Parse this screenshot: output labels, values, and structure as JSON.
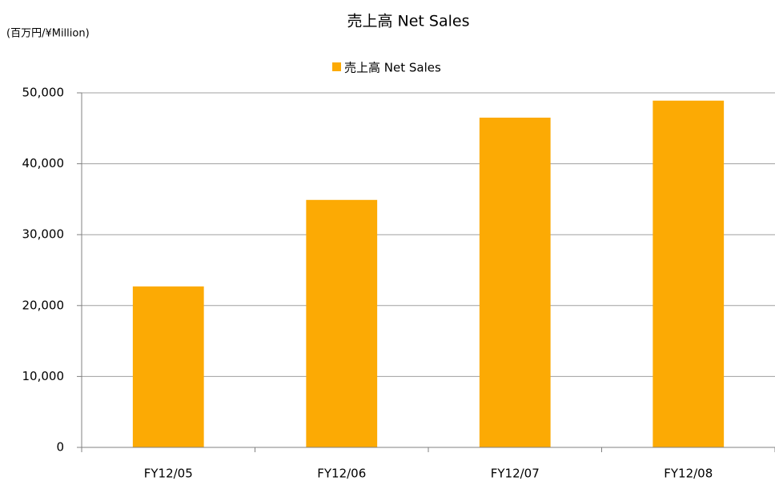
{
  "chart_data": {
    "type": "bar",
    "title": "売上高 Net Sales",
    "y_label": "(百万円/¥Million)",
    "categories": [
      "FY12/05",
      "FY12/06",
      "FY12/07",
      "FY12/08"
    ],
    "series": [
      {
        "name": "売上高 Net Sales",
        "color": "#fcaa04",
        "values": [
          22700,
          34900,
          46500,
          48900
        ]
      }
    ],
    "ylim": [
      0,
      50000
    ],
    "yticks": [
      0,
      {
        "value": 10000,
        "label": "10,000"
      },
      {
        "value": 20000,
        "label": "20,000"
      },
      {
        "value": 30000,
        "label": "30,000"
      },
      {
        "value": 40000,
        "label": "40,000"
      },
      {
        "value": 50000,
        "label": "50,000"
      }
    ],
    "grid": true,
    "legend": "top"
  }
}
